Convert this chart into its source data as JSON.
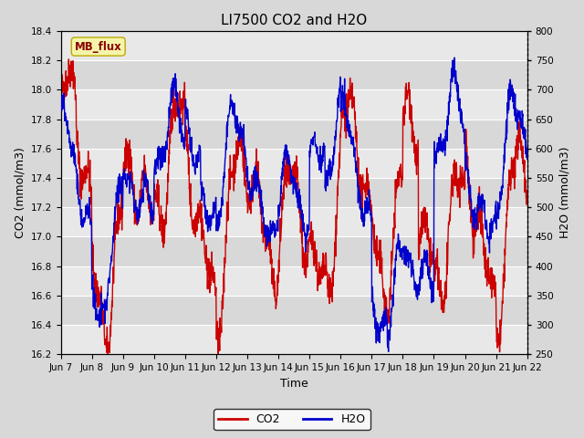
{
  "title": "LI7500 CO2 and H2O",
  "xlabel": "Time",
  "ylabel_left": "CO2 (mmol/m3)",
  "ylabel_right": "H2O (mmol/m3)",
  "watermark": "MB_flux",
  "co2_color": "#cc0000",
  "h2o_color": "#0000cc",
  "co2_label": "CO2",
  "h2o_label": "H2O",
  "ylim_left": [
    16.2,
    18.4
  ],
  "ylim_right": [
    250,
    800
  ],
  "yticks_left": [
    16.2,
    16.4,
    16.6,
    16.8,
    17.0,
    17.2,
    17.4,
    17.6,
    17.8,
    18.0,
    18.2,
    18.4
  ],
  "yticks_right": [
    250,
    300,
    350,
    400,
    450,
    500,
    550,
    600,
    650,
    700,
    750,
    800
  ],
  "x_tick_labels": [
    "Jun 7",
    "Jun 8",
    "Jun 9",
    "Jun 10",
    "Jun 11",
    "Jun 12",
    "Jun 13",
    "Jun 14",
    "Jun 15",
    "Jun 16",
    "Jun 17",
    "Jun 18",
    "Jun 19",
    "Jun 20",
    "Jun 21",
    "Jun 22"
  ],
  "bg_color": "#d8d8d8",
  "plot_bg_color": "#e8e8e8",
  "band_light": "#e8e8e8",
  "band_dark": "#d8d8d8",
  "grid_color": "#ffffff",
  "title_fontsize": 11,
  "axis_label_fontsize": 9,
  "tick_fontsize": 7.5,
  "legend_fontsize": 9,
  "linewidth": 1.0
}
